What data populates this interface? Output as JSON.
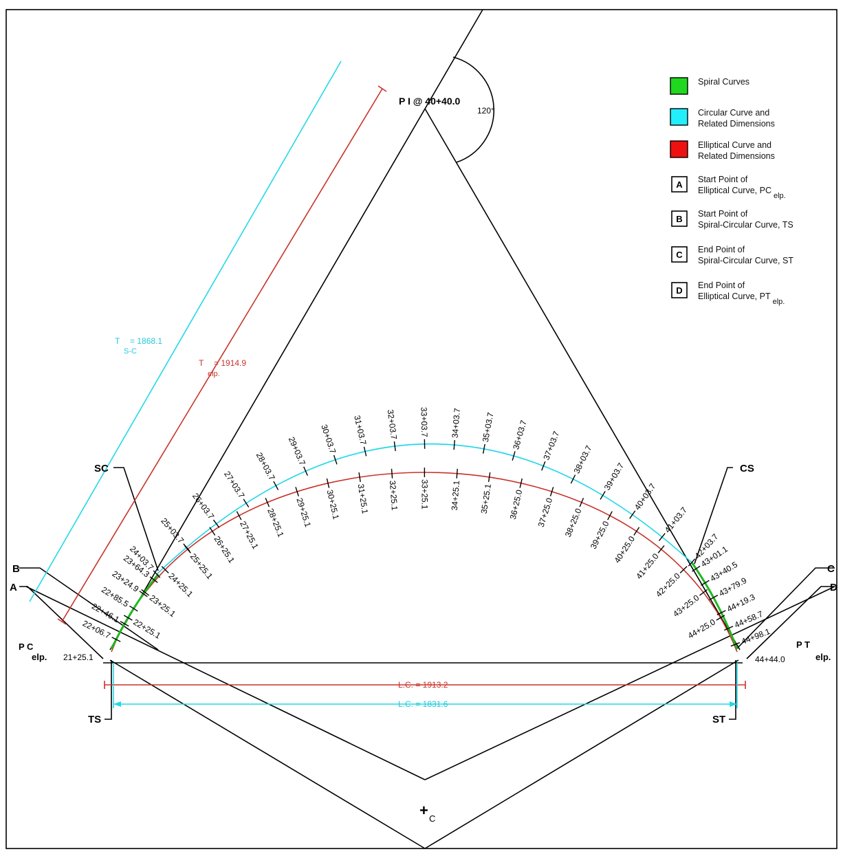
{
  "legend": [
    {
      "swatch_color": "#1fd81f",
      "lines": [
        "Spiral Curves"
      ]
    },
    {
      "swatch_color": "#22eefc",
      "lines": [
        "Circular Curve and",
        "Related Dimensions"
      ]
    },
    {
      "swatch_color": "#ee1111",
      "lines": [
        "Elliptical Curve and",
        "Related Dimensions"
      ]
    },
    {
      "letter": "A",
      "lines": [
        "Start Point of",
        "Elliptical Curve, PC"
      ],
      "sub": "elp."
    },
    {
      "letter": "B",
      "lines": [
        "Start Point of",
        "Spiral-Circular Curve, TS"
      ]
    },
    {
      "letter": "C",
      "lines": [
        "End Point of",
        "Spiral-Circular Curve, ST"
      ]
    },
    {
      "letter": "D",
      "lines": [
        "End Point of",
        "Elliptical Curve, PT"
      ],
      "sub": "elp."
    }
  ],
  "pi_label": "P I  @ 40+40.0",
  "angle_label": "120°",
  "tangent_sc": {
    "main": "T",
    "sub": "S-C",
    "value": "= 1868.1"
  },
  "tangent_elp": {
    "main": "T",
    "sub": "elp.",
    "value": "= 1914.9"
  },
  "point_labels": {
    "sc": "SC",
    "cs": "CS",
    "ts": "TS",
    "st": "ST",
    "a": "A",
    "b": "B",
    "c": "C",
    "d": "D",
    "pc_main": "P C",
    "pc_sub": "elp.",
    "pt_main": "P T",
    "pt_sub": "elp.",
    "center_main": "+",
    "center_sub": "C"
  },
  "chords": {
    "elliptical": "L.C. = 1913.2",
    "circular": "L.C. = 1831.6"
  },
  "stations": {
    "pc": "21+25.1",
    "pt": "44+44.0",
    "circular": [
      "24+03.7",
      "25+03.7",
      "26+03.7",
      "27+03.7",
      "28+03.7",
      "29+03.7",
      "30+03.7",
      "31+03.7",
      "32+03.7",
      "33+03.7",
      "34+03.7",
      "35+03.7",
      "36+03.7",
      "37+03.7",
      "38+03.7",
      "39+03.7",
      "40+03.7",
      "41+03.7",
      "42+03.7"
    ],
    "left_spiral": [
      "22+06.7",
      "22+46.1",
      "22+85.5",
      "23+24.9",
      "23+64.3"
    ],
    "right_spiral": [
      "43+01.1",
      "43+40.5",
      "43+79.9",
      "44+19.3",
      "44+58.7",
      "44+98.1"
    ],
    "elliptical": [
      "22+25.1",
      "23+25.1",
      "24+25.1",
      "25+25.1",
      "26+25.1",
      "27+25.1",
      "28+25.1",
      "29+25.1",
      "30+25.1",
      "31+25.1",
      "32+25.1",
      "33+25.1",
      "34+25.1",
      "35+25.1",
      "36+25.0",
      "37+25.0",
      "38+25.0",
      "39+25.0",
      "40+25.0",
      "41+25.0",
      "42+25.0",
      "43+25.0",
      "44+25.0"
    ]
  }
}
